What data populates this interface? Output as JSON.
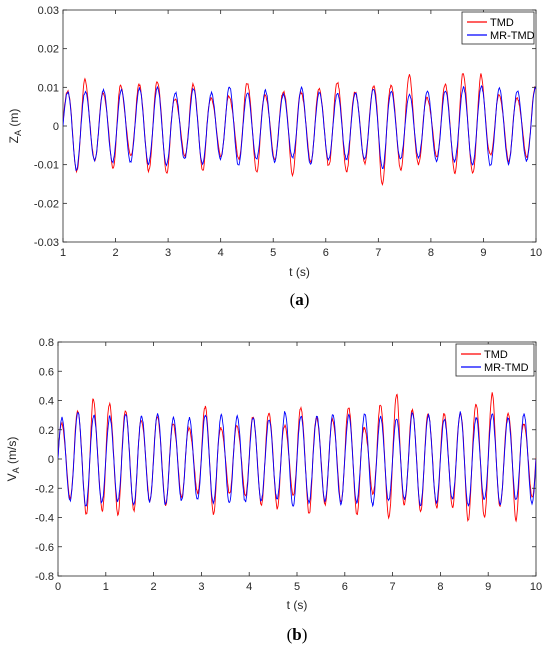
{
  "chart_data": [
    {
      "type": "line",
      "caption_letter": "a",
      "xlabel": "t (s)",
      "ylabel_main": "Z",
      "ylabel_sub": "A",
      "ylabel_unit": " (m)",
      "xlim": [
        1,
        10
      ],
      "ylim": [
        -0.03,
        0.03
      ],
      "xticks": [
        1,
        2,
        3,
        4,
        5,
        6,
        7,
        8,
        9,
        10
      ],
      "yticks": [
        -0.03,
        -0.02,
        -0.01,
        0,
        0.01,
        0.02,
        0.03
      ],
      "ytick_labels": [
        "-0.03",
        "-0.02",
        "-0.01",
        "0",
        "0.01",
        "0.02",
        "0.03"
      ],
      "grid": false,
      "legend_position": "top-right",
      "series": [
        {
          "name": "TMD",
          "color": "#ff0000",
          "freq_hz": 2.92,
          "base_amplitude": 0.0098,
          "amp_variation": 0.003,
          "asymmetry": 0.0007,
          "seed": 11,
          "bursts": [
            [
              1.2,
              0.012
            ],
            [
              1.4,
              -0.013
            ],
            [
              2.05,
              -0.0125
            ],
            [
              5.35,
              0.0125
            ],
            [
              6.3,
              0.0125
            ],
            [
              7.05,
              0.0155
            ],
            [
              7.6,
              -0.014
            ],
            [
              8.6,
              0.0143
            ],
            [
              8.95,
              0.0142
            ]
          ]
        },
        {
          "name": "MR-TMD",
          "color": "#0000ff",
          "freq_hz": 2.92,
          "base_amplitude": 0.0092,
          "amp_variation": 0.0012,
          "asymmetry": 0.0,
          "seed": 23,
          "bursts": [
            [
              1.25,
              0.0115
            ],
            [
              7.1,
              0.0112
            ]
          ]
        }
      ]
    },
    {
      "type": "line",
      "caption_letter": "b",
      "xlabel": "t (s)",
      "ylabel_main": "V",
      "ylabel_sub": "A",
      "ylabel_unit": " (m/s)",
      "xlim": [
        0,
        10
      ],
      "ylim": [
        -0.8,
        0.8
      ],
      "xticks": [
        0,
        1,
        2,
        3,
        4,
        5,
        6,
        7,
        8,
        9,
        10
      ],
      "yticks": [
        -0.8,
        -0.6,
        -0.4,
        -0.2,
        0,
        0.2,
        0.4,
        0.6,
        0.8
      ],
      "ytick_labels": [
        "-0.8",
        "-0.6",
        "-0.4",
        "-0.2",
        "0",
        "0.2",
        "0.4",
        "0.6",
        "0.8"
      ],
      "grid": false,
      "legend_position": "top-right",
      "series": [
        {
          "name": "TMD",
          "color": "#ff0000",
          "freq_hz": 3.0,
          "base_amplitude": 0.3,
          "amp_variation": 0.09,
          "asymmetry": 0.02,
          "seed": 5,
          "bursts": [
            [
              0.72,
              0.45
            ],
            [
              1.0,
              -0.41
            ],
            [
              7.1,
              -0.48
            ],
            [
              8.55,
              0.44
            ],
            [
              9.1,
              -0.48
            ],
            [
              9.55,
              0.43
            ]
          ]
        },
        {
          "name": "MR-TMD",
          "color": "#0000ff",
          "freq_hz": 3.0,
          "base_amplitude": 0.3,
          "amp_variation": 0.03,
          "asymmetry": 0.0,
          "seed": 17,
          "bursts": []
        }
      ]
    }
  ]
}
